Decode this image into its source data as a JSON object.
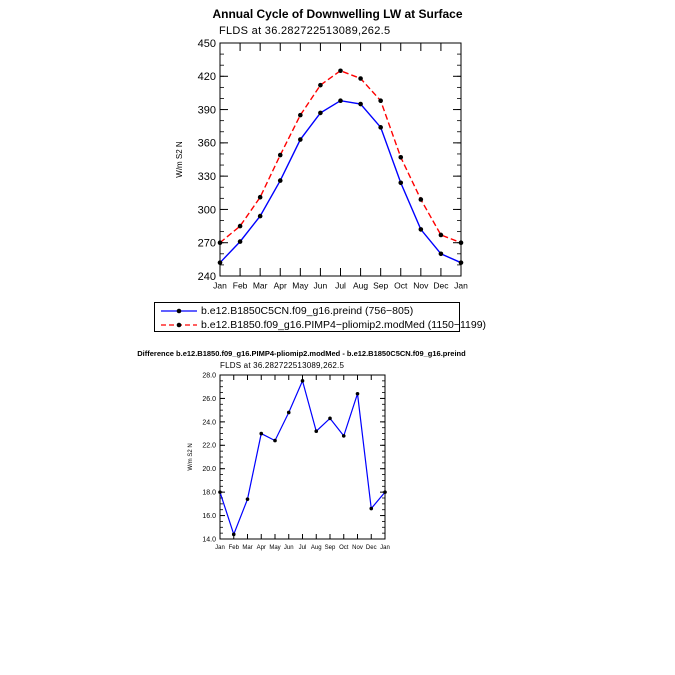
{
  "title1": "Annual Cycle of Downwelling LW at Surface",
  "subtitle1": "FLDS at 36.282722513089,262.5",
  "title2": "Difference b.e12.B1850.f09_g16.PIMP4-pliomip2.modMed - b.e12.B1850C5CN.f09_g16.preind",
  "subtitle2": "FLDS at 36.282722513089,262.5",
  "legend": [
    {
      "label": "b.e12.B1850C5CN.f09_g16.preind (756−805)",
      "color": "#0000ff",
      "dash": "solid"
    },
    {
      "label": "b.e12.B1850.f09_g16.PIMP4−pliomip2.modMed (1150−1199)",
      "color": "#ff0000",
      "dash": "dashed"
    }
  ],
  "chart_data": [
    {
      "type": "line",
      "title": "Annual Cycle of Downwelling LW at Surface",
      "subtitle": "FLDS at 36.282722513089,262.5",
      "xlabel": "",
      "ylabel": "W/m S2 N",
      "ylim": [
        240,
        450
      ],
      "yticks": [
        240,
        270,
        300,
        330,
        360,
        390,
        420,
        450
      ],
      "yticklabels": [
        "240",
        "270",
        "300",
        "330",
        "360",
        "390",
        "420",
        "450"
      ],
      "categories": [
        "Jan",
        "Feb",
        "Mar",
        "Apr",
        "May",
        "Jun",
        "Jul",
        "Aug",
        "Sep",
        "Oct",
        "Nov",
        "Dec",
        "Jan"
      ],
      "series": [
        {
          "name": "b.e12.B1850C5CN.f09_g16.preind (756−805)",
          "color": "#0000ff",
          "dash": "solid",
          "values": [
            252,
            271,
            294,
            326,
            363,
            387,
            398,
            395,
            374,
            324,
            282,
            260,
            252
          ]
        },
        {
          "name": "b.e12.B1850.f09_g16.PIMP4−pliomip2.modMed (1150−1199)",
          "color": "#ff0000",
          "dash": "dashed",
          "values": [
            270,
            285,
            311,
            349,
            385,
            412,
            425,
            418,
            398,
            347,
            309,
            277,
            270
          ]
        }
      ]
    },
    {
      "type": "line",
      "title": "Difference b.e12.B1850.f09_g16.PIMP4-pliomip2.modMed - b.e12.B1850C5CN.f09_g16.preind",
      "subtitle": "FLDS at 36.282722513089,262.5",
      "xlabel": "",
      "ylabel": "W/m S2 N",
      "ylim": [
        14.0,
        28.0
      ],
      "yticks": [
        14,
        16,
        18,
        20,
        22,
        24,
        26,
        28
      ],
      "yticklabels": [
        "14.0",
        "16.0",
        "18.0",
        "20.0",
        "22.0",
        "24.0",
        "26.0",
        "28.0"
      ],
      "categories": [
        "Jan",
        "Feb",
        "Mar",
        "Apr",
        "May",
        "Jun",
        "Jul",
        "Aug",
        "Sep",
        "Oct",
        "Nov",
        "Dec",
        "Jan"
      ],
      "series": [
        {
          "name": "",
          "color": "#0000ff",
          "dash": "solid",
          "values": [
            18.0,
            14.4,
            17.4,
            23.0,
            22.4,
            24.8,
            27.5,
            23.2,
            24.3,
            22.8,
            26.4,
            16.6,
            18.0
          ]
        }
      ]
    }
  ]
}
